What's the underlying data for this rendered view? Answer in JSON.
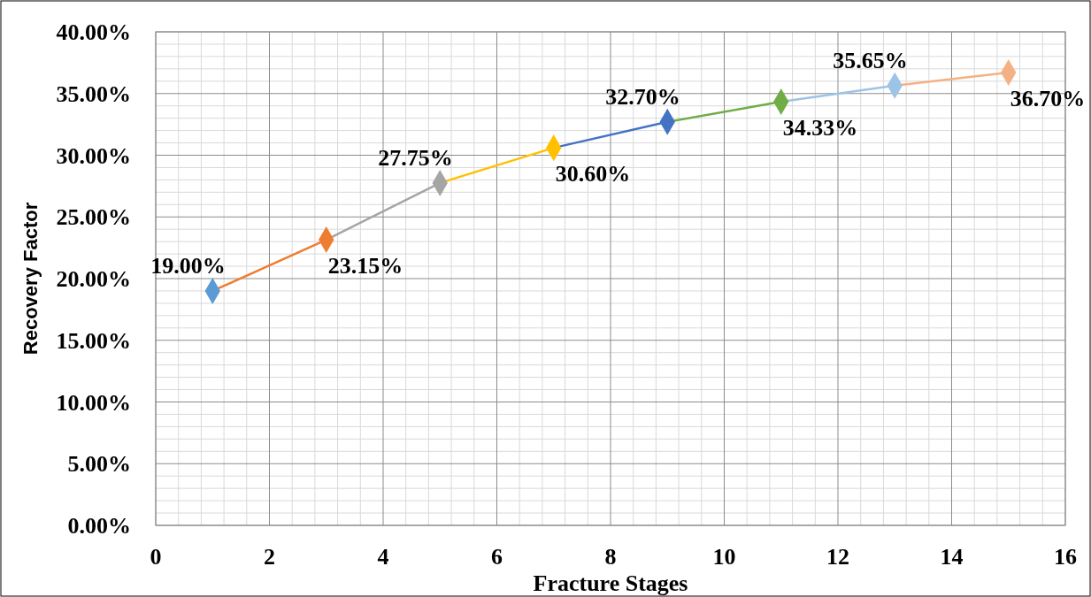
{
  "chart_data": {
    "type": "line",
    "xlabel": "Fracture Stages",
    "ylabel": "Recovery Factor",
    "x": [
      1,
      3,
      5,
      7,
      9,
      11,
      13,
      15
    ],
    "series": [
      {
        "values": [
          19.0,
          23.15,
          27.75,
          30.6,
          32.7,
          34.33,
          35.65,
          36.7
        ],
        "colors": [
          "#5b9bd5",
          "#ed7d31",
          "#a5a5a5",
          "#ffc000",
          "#4472c4",
          "#70ad47",
          "#9dc3e6",
          "#f4b183"
        ],
        "value_labels": [
          "19.00%",
          "23.15%",
          "27.75%",
          "30.60%",
          "32.70%",
          "34.33%",
          "35.65%",
          "36.70%"
        ]
      }
    ],
    "xlim": [
      0,
      16
    ],
    "xticks": [
      0,
      2,
      4,
      6,
      8,
      10,
      12,
      14,
      16
    ],
    "ylim": [
      0,
      40
    ],
    "yticks": [
      {
        "value": 0,
        "label": "0.00%"
      },
      {
        "value": 5,
        "label": "5.00%"
      },
      {
        "value": 10,
        "label": "10.00%"
      },
      {
        "value": 15,
        "label": "15.00%"
      },
      {
        "value": 20,
        "label": "20.00%"
      },
      {
        "value": 25,
        "label": "25.00%"
      },
      {
        "value": 30,
        "label": "30.00%"
      },
      {
        "value": 35,
        "label": "35.00%"
      },
      {
        "value": 40,
        "label": "40.00%"
      }
    ],
    "grid": true,
    "marker": "diamond"
  }
}
